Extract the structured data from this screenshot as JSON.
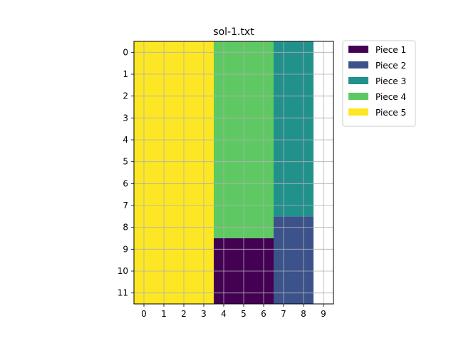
{
  "chart_data": {
    "type": "heatmap",
    "title": "sol-1.txt",
    "xlabel": "",
    "ylabel": "",
    "grid": true,
    "legend_placement": "outside-top-right",
    "x_ticks": [
      "0",
      "1",
      "2",
      "3",
      "4",
      "5",
      "6",
      "7",
      "8",
      "9"
    ],
    "y_ticks": [
      "0",
      "1",
      "2",
      "3",
      "4",
      "5",
      "6",
      "7",
      "8",
      "9",
      "10",
      "11"
    ],
    "xlim": [
      -0.5,
      9.5
    ],
    "ylim": [
      11.5,
      -0.5
    ],
    "pieces": [
      {
        "name": "Piece 1",
        "color": "#440154",
        "x0": 4,
        "x1": 6,
        "y0": 9,
        "y1": 11
      },
      {
        "name": "Piece 2",
        "color": "#3b528b",
        "x0": 7,
        "x1": 8,
        "y0": 8,
        "y1": 11
      },
      {
        "name": "Piece 3",
        "color": "#21918c",
        "x0": 7,
        "x1": 8,
        "y0": 0,
        "y1": 7
      },
      {
        "name": "Piece 4",
        "color": "#5ec962",
        "x0": 4,
        "x1": 6,
        "y0": 0,
        "y1": 8
      },
      {
        "name": "Piece 5",
        "color": "#fde725",
        "x0": 0,
        "x1": 3,
        "y0": 0,
        "y1": 11
      }
    ]
  }
}
